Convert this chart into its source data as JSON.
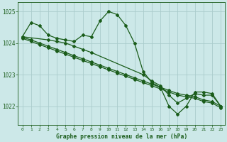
{
  "background_color": "#cce8e8",
  "plot_bg_color": "#cce8e8",
  "grid_color": "#aacccc",
  "line_color": "#1a5c1a",
  "title": "Graphe pression niveau de la mer (hPa)",
  "xlim": [
    -0.5,
    23.5
  ],
  "ylim": [
    1021.4,
    1025.3
  ],
  "yticks": [
    1022,
    1023,
    1024,
    1025
  ],
  "xticks": [
    0,
    1,
    2,
    3,
    4,
    5,
    6,
    7,
    8,
    9,
    10,
    11,
    12,
    13,
    14,
    15,
    16,
    17,
    18,
    19,
    20,
    21,
    22,
    23
  ],
  "series": [
    {
      "x": [
        0,
        1,
        2,
        3,
        4,
        5,
        6,
        7,
        8,
        9,
        10,
        11,
        12,
        13,
        14,
        15,
        16,
        17,
        18,
        19,
        20,
        21,
        22,
        23
      ],
      "y": [
        1024.2,
        1024.65,
        1024.55,
        1024.25,
        1024.15,
        1024.1,
        1024.05,
        1024.25,
        1024.2,
        1024.7,
        1025.0,
        1024.9,
        1024.55,
        1024.0,
        1023.1,
        1022.75,
        1022.6,
        1022.0,
        1021.75,
        1022.0,
        1022.45,
        1022.45,
        1022.4,
        1022.0
      ]
    },
    {
      "x": [
        0,
        3,
        4,
        5,
        6,
        7,
        8,
        14,
        15,
        16,
        17,
        18,
        19,
        20,
        21,
        22,
        23
      ],
      "y": [
        1024.2,
        1024.1,
        1024.05,
        1024.0,
        1023.9,
        1023.8,
        1023.7,
        1023.0,
        1022.8,
        1022.65,
        1022.35,
        1022.1,
        1022.25,
        1022.4,
        1022.35,
        1022.35,
        1022.0
      ]
    },
    {
      "x": [
        0,
        1,
        2,
        3,
        4,
        5,
        6,
        7,
        8,
        9,
        10,
        11,
        12,
        13,
        14,
        15,
        16,
        17,
        18,
        19,
        20,
        21,
        22,
        23
      ],
      "y": [
        1024.18,
        1024.1,
        1024.0,
        1023.9,
        1023.8,
        1023.7,
        1023.6,
        1023.5,
        1023.4,
        1023.3,
        1023.2,
        1023.1,
        1023.0,
        1022.9,
        1022.8,
        1022.7,
        1022.6,
        1022.5,
        1022.4,
        1022.35,
        1022.3,
        1022.2,
        1022.15,
        1022.0
      ]
    },
    {
      "x": [
        0,
        1,
        2,
        3,
        4,
        5,
        6,
        7,
        8,
        9,
        10,
        11,
        12,
        13,
        14,
        15,
        16,
        17,
        18,
        19,
        20,
        21,
        22,
        23
      ],
      "y": [
        1024.15,
        1024.05,
        1023.95,
        1023.85,
        1023.75,
        1023.65,
        1023.55,
        1023.45,
        1023.35,
        1023.25,
        1023.15,
        1023.05,
        1022.95,
        1022.85,
        1022.75,
        1022.65,
        1022.55,
        1022.45,
        1022.35,
        1022.3,
        1022.25,
        1022.15,
        1022.1,
        1021.95
      ]
    }
  ]
}
